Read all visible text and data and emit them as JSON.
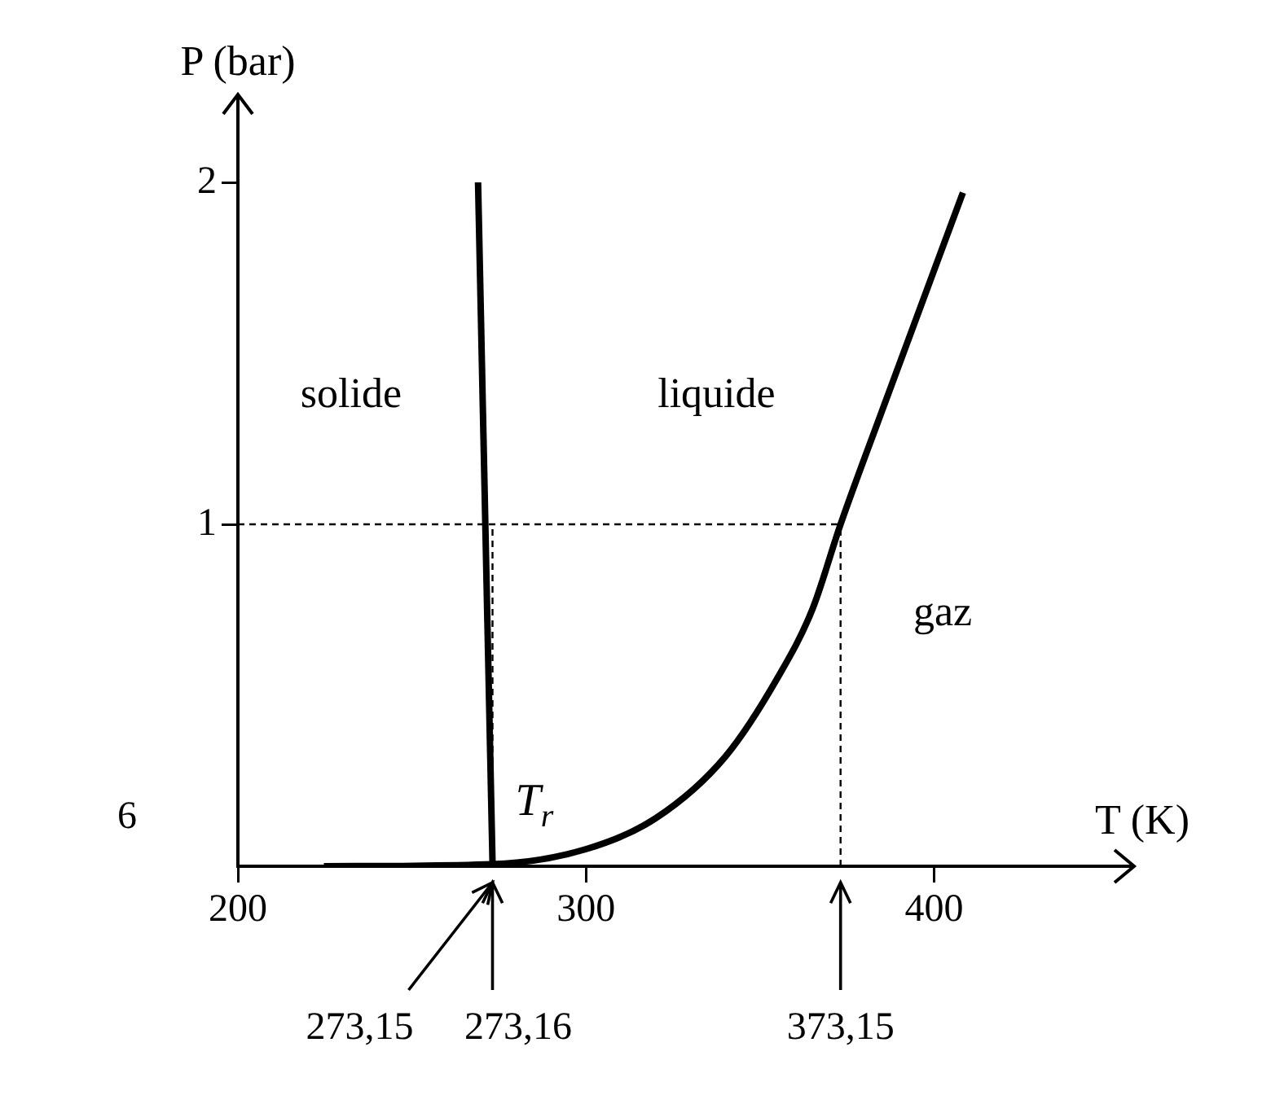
{
  "chart_data": {
    "type": "line",
    "xlabel": "T (K)",
    "ylabel": "P (bar)",
    "xlim": [
      200,
      450
    ],
    "xticks": [
      200,
      300,
      400
    ],
    "ylim": [
      0,
      2.2
    ],
    "yticks": [
      1,
      2
    ],
    "legend": false,
    "marker": "none",
    "series": [
      {
        "color": "#000000",
        "line_style": "solid",
        "x": [
          273.16,
          269
        ],
        "values": [
          0.006,
          2
        ]
      },
      {
        "color": "#000000",
        "line_style": "solid",
        "x": [
          224.7,
          273.16,
          300,
          320,
          340,
          355,
          365,
          373.15,
          385,
          408.3
        ],
        "values": [
          0,
          0.006,
          0.05,
          0.14,
          0.32,
          0.55,
          0.75,
          1,
          1.33,
          1.97
        ]
      },
      {
        "color": "#000000",
        "line_style": "dashed",
        "x": [
          273.15,
          273.15
        ],
        "values": [
          0,
          1
        ]
      },
      {
        "color": "#000000",
        "line_style": "dashed",
        "x": [
          373.15,
          373.15
        ],
        "values": [
          0,
          1
        ]
      },
      {
        "color": "#000000",
        "line_style": "dashed",
        "x": [
          200,
          373.15
        ],
        "values": [
          1,
          1
        ]
      }
    ],
    "annotations": [
      "solide",
      "liquide",
      "gaz",
      "273,15",
      "273,16",
      "373,15",
      "6",
      {
        "text": "T$_{r}$",
        "x": 273.16,
        "y": 0.006
      }
    ]
  }
}
